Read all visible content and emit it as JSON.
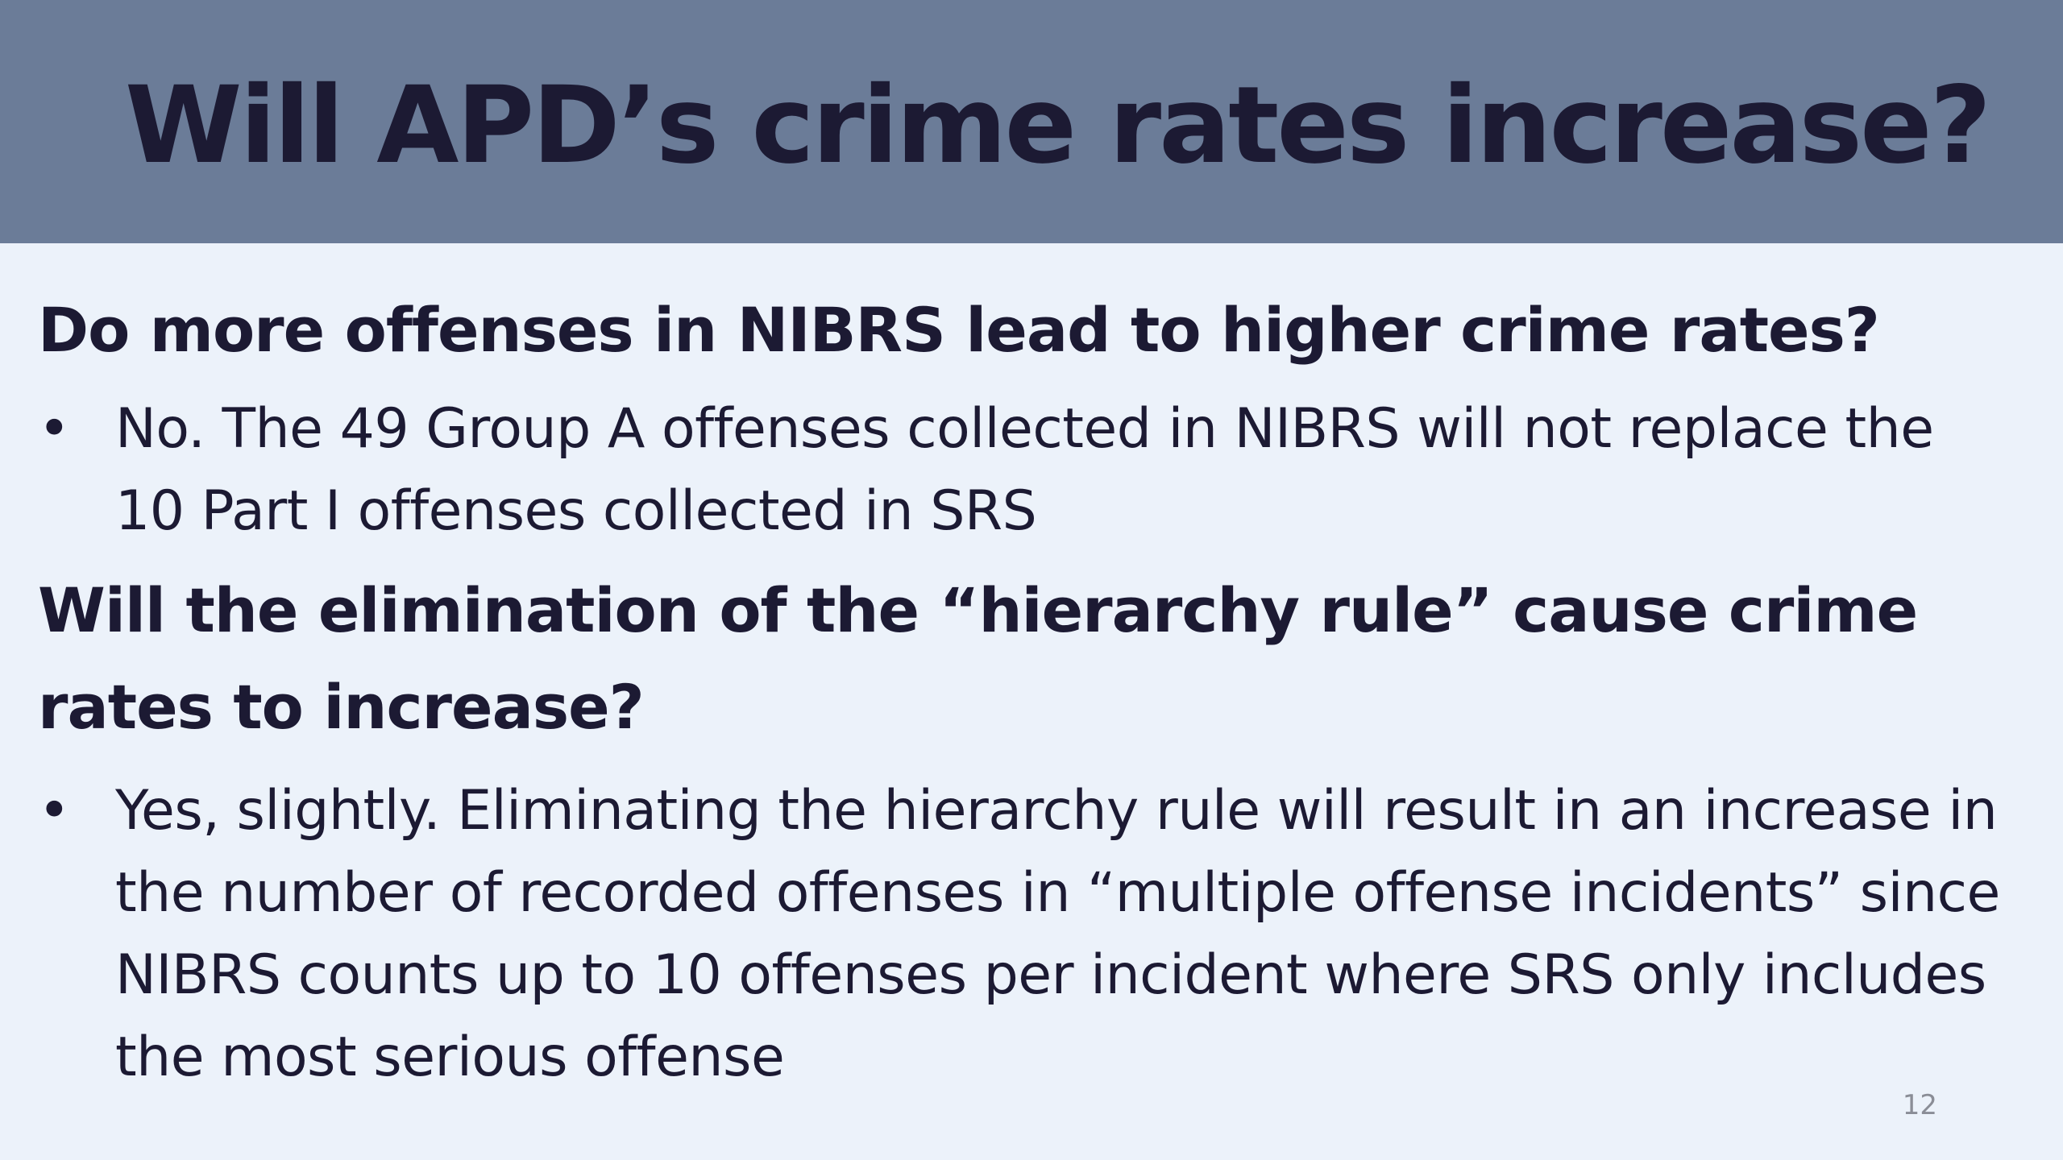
{
  "slide": {
    "title": "Will APD’s crime rates increase?",
    "sections": [
      {
        "heading": "Do more offenses in NIBRS lead to higher crime rates?",
        "bullet": "No. The 49 Group A offenses collected in NIBRS will not replace the 10 Part I offenses collected in SRS"
      },
      {
        "heading": "Will the elimination of the “hierarchy rule” cause crime rates to increase?",
        "bullet": "Yes, slightly. Eliminating the hierarchy rule will result in an increase in the number of recorded offenses in “multiple offense incidents” since NIBRS counts up to 10 offenses per incident where SRS only includes the most serious offense"
      }
    ],
    "bullet_symbol": "•",
    "page_number": "12"
  },
  "colors": {
    "title_bar": "#6b7c98",
    "background": "#ecf2fa",
    "text": "#1c1a33",
    "page_number": "#8a8d96"
  }
}
